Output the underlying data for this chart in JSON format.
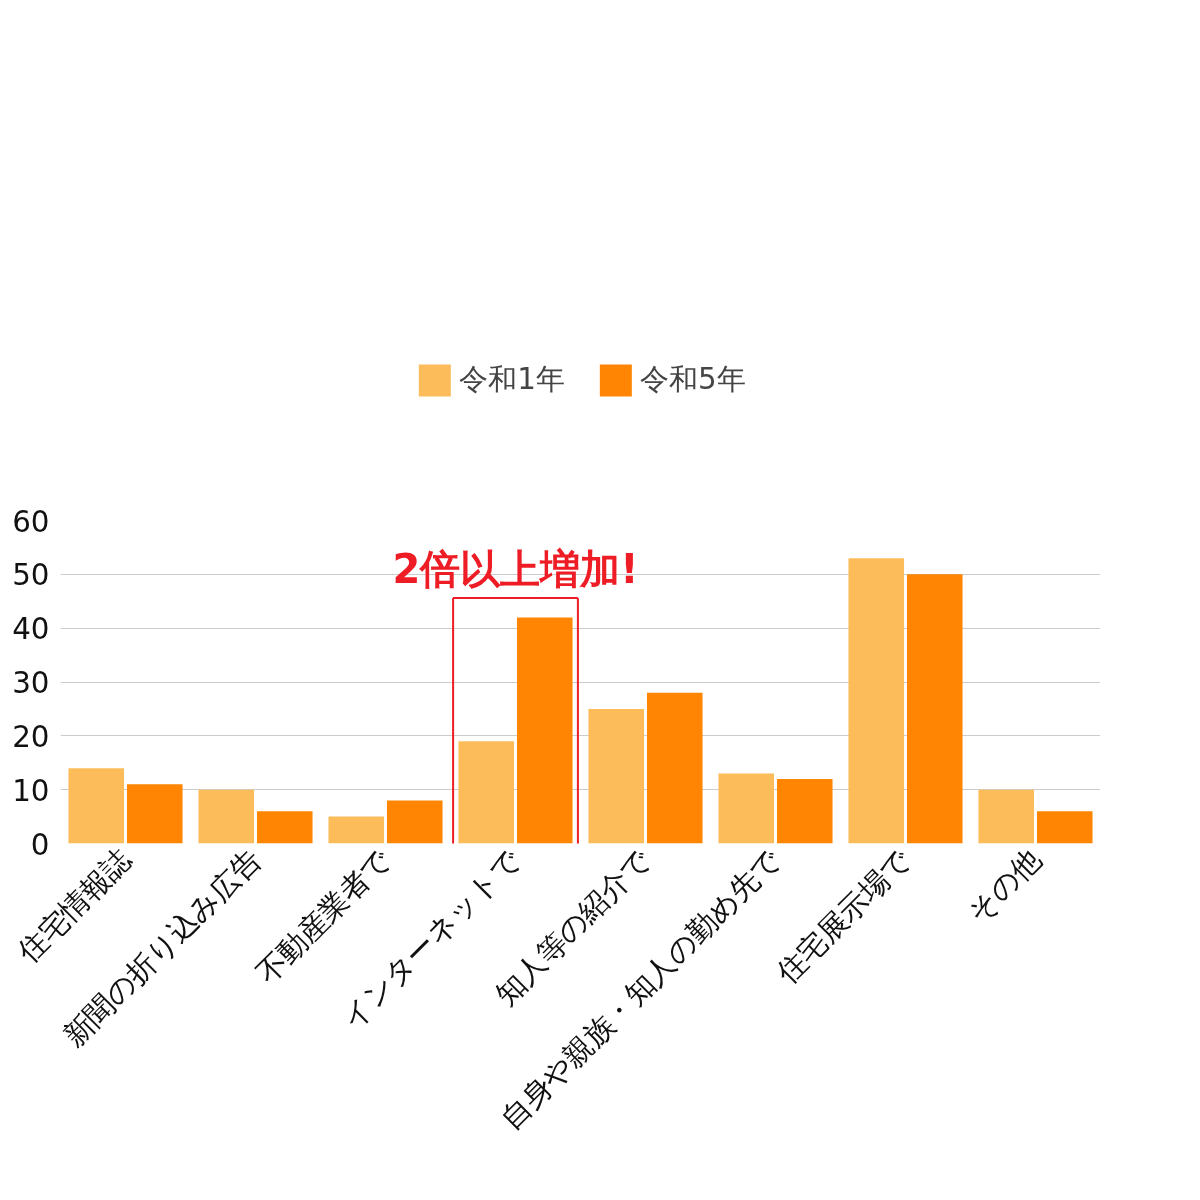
{
  "chart_data": {
    "type": "bar",
    "categories": [
      "住宅情報誌",
      "新聞の折り込み広告",
      "不動産業者で",
      "インターネットで",
      "知人等の紹介で",
      "自身や親族・知人の勤め先で",
      "住宅展示場で",
      "その他"
    ],
    "series": [
      {
        "name": "令和1年",
        "color": "#fdbc5a",
        "values": [
          14,
          10,
          5,
          19,
          25,
          13,
          53,
          10
        ]
      },
      {
        "name": "令和5年",
        "color": "#ff8502",
        "values": [
          11,
          6,
          8,
          42,
          28,
          12,
          50,
          6
        ]
      }
    ],
    "ylim": [
      0,
      60
    ],
    "yticks": [
      0,
      10,
      20,
      30,
      40,
      50,
      60
    ],
    "grid": "y",
    "legend": "top",
    "annotations": [
      "2倍以上増加!"
    ]
  }
}
